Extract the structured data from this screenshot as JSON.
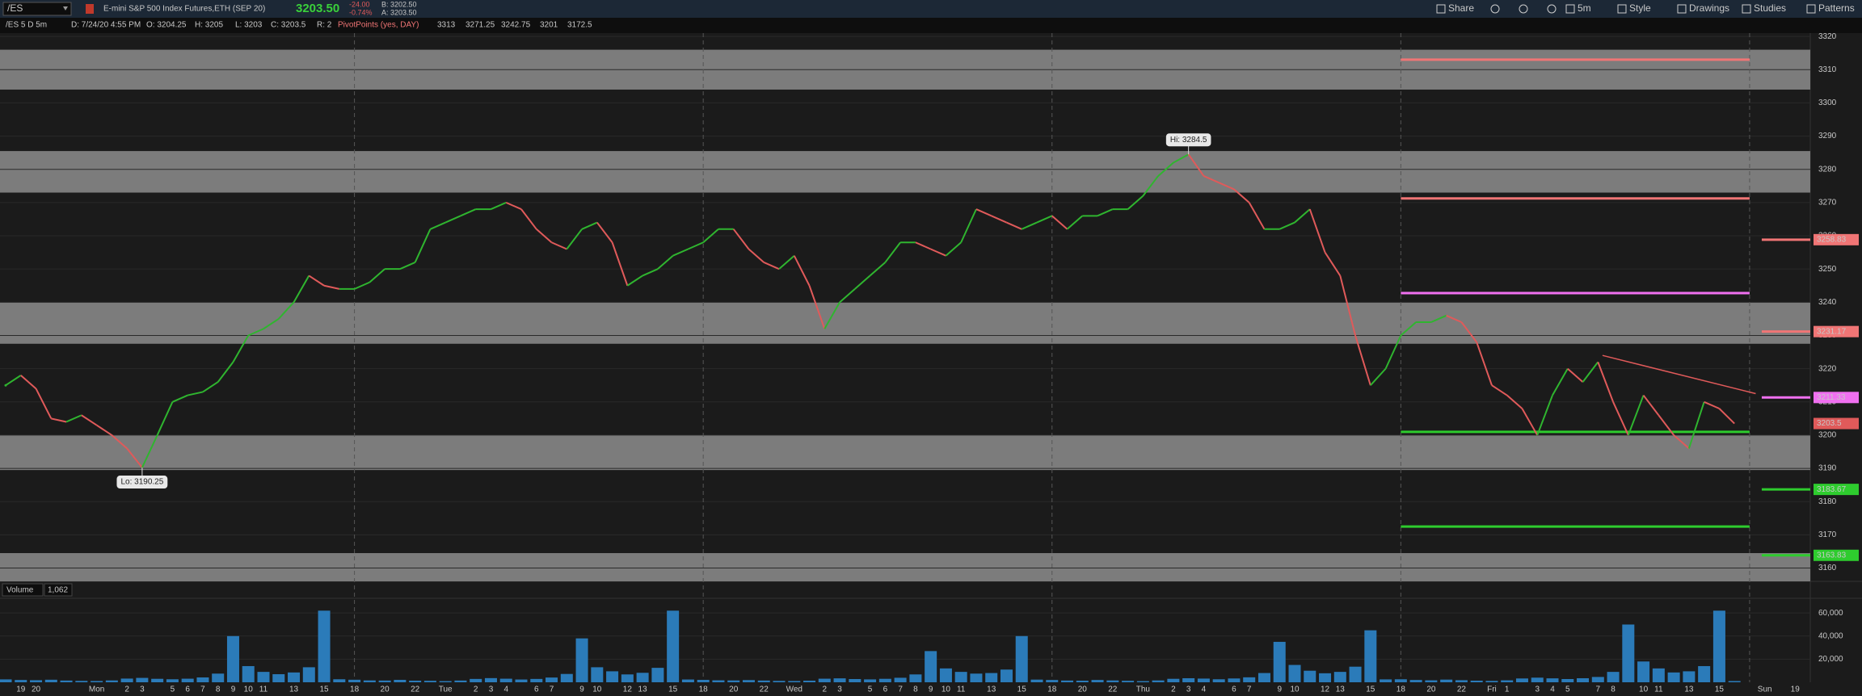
{
  "toolbar": {
    "description": "E-mini S&P 500 Index Futures,ETH (SEP 20)",
    "last": "3203.50",
    "change": "-24.00",
    "change_pct": "-0.74%",
    "bid": "B: 3202.50",
    "ask": "A: 3203.50",
    "buttons": [
      "Share",
      "5m",
      "Style",
      "Drawings",
      "Studies",
      "Patterns"
    ]
  },
  "info_bar": {
    "chart": "/ES 5 D 5m",
    "date": "D: 7/24/20 4:55 PM",
    "open": "O: 3204.25",
    "high": "H: 3205",
    "low": "L: 3203",
    "close": "C: 3203.5",
    "range": "R: 2",
    "study": "PivotPoints (yes, DAY)"
  },
  "chart_data": {
    "type": "line",
    "x": [
      0,
      1,
      2,
      3,
      4,
      5,
      6,
      7,
      8,
      9,
      10,
      11,
      12,
      13,
      14,
      15,
      16,
      17,
      18,
      19,
      20,
      21,
      22,
      23,
      24,
      25,
      26,
      27,
      28,
      29,
      30,
      31,
      32,
      33,
      34,
      35,
      36,
      37,
      38,
      39,
      40,
      41,
      42,
      43,
      44,
      45,
      46,
      47,
      48,
      49,
      50,
      51,
      52,
      53,
      54,
      55,
      56,
      57,
      58,
      59,
      60,
      61,
      62,
      63,
      64,
      65,
      66,
      67,
      68,
      69,
      70,
      71,
      72,
      73,
      74,
      75,
      76,
      77,
      78,
      79,
      80,
      81,
      82,
      83,
      84,
      85,
      86,
      87,
      88,
      89,
      90,
      91,
      92,
      93,
      94,
      95,
      96,
      97,
      98,
      99,
      100,
      101,
      102,
      103,
      104,
      105,
      106,
      107,
      108,
      109,
      110,
      111,
      112,
      113,
      114
    ],
    "series": [
      {
        "name": "/ES",
        "up_color": "#2fb52f",
        "down_color": "#e05a5a",
        "values": [
          3215,
          3218,
          3214,
          3205,
          3204,
          3206,
          3203,
          3200,
          3196,
          3190.25,
          3200,
          3210,
          3212,
          3213,
          3216,
          3222,
          3230,
          3232,
          3235,
          3240,
          3248,
          3245,
          3244,
          3244,
          3246,
          3250,
          3250,
          3252,
          3262,
          3264,
          3266,
          3268,
          3268,
          3270,
          3268,
          3262,
          3258,
          3256,
          3262,
          3264,
          3258,
          3245,
          3248,
          3250,
          3254,
          3256,
          3258,
          3262,
          3262,
          3256,
          3252,
          3250,
          3254,
          3245,
          3232,
          3240,
          3244,
          3248,
          3252,
          3258,
          3258,
          3256,
          3254,
          3258,
          3268,
          3266,
          3264,
          3262,
          3264,
          3266,
          3262,
          3266,
          3266,
          3268,
          3268,
          3272,
          3278,
          3282,
          3284.5,
          3278,
          3276,
          3274,
          3270,
          3262,
          3262,
          3264,
          3268,
          3255,
          3248,
          3230,
          3215,
          3220,
          3230,
          3234,
          3234,
          3236,
          3234,
          3228,
          3215,
          3212,
          3208,
          3200,
          3212,
          3220,
          3216,
          3222,
          3210,
          3200,
          3212,
          3206,
          3200,
          3196,
          3210,
          3208,
          3203.5
        ]
      },
      {
        "name": "Volume",
        "type": "bar",
        "axis": "y2",
        "color": "#2b7bb9",
        "values": [
          2500,
          2000,
          1800,
          2200,
          1500,
          1200,
          1100,
          1600,
          3200,
          3800,
          3000,
          2600,
          3100,
          4200,
          7500,
          40000,
          14000,
          9000,
          7000,
          8500,
          13000,
          62000,
          2600,
          2200,
          1600,
          1500,
          2100,
          1400,
          1300,
          1000,
          1500,
          2900,
          3600,
          3100,
          2400,
          2900,
          4100,
          7200,
          38000,
          13000,
          9500,
          6800,
          8200,
          12500,
          62000,
          2400,
          2100,
          1700,
          1600,
          1900,
          1500,
          1200,
          1100,
          1400,
          3100,
          3400,
          2800,
          2500,
          3000,
          3900,
          6800,
          27000,
          12000,
          9000,
          7500,
          8000,
          11000,
          40000,
          2300,
          2000,
          1500,
          1400,
          2000,
          1600,
          1300,
          1000,
          1600,
          3000,
          3500,
          3200,
          2600,
          3300,
          4300,
          8000,
          35000,
          15000,
          10000,
          7800,
          9000,
          13500,
          45000,
          2500,
          2600,
          2000,
          1700,
          2300,
          1800,
          1400,
          1200,
          1700,
          3300,
          4000,
          3400,
          2800,
          3500,
          4600,
          9000,
          50000,
          18000,
          12000,
          8500,
          9500,
          14000,
          62000,
          1062
        ]
      }
    ],
    "volume_label": "1,062",
    "xlim": [
      0,
      119
    ],
    "xticks": [
      {
        "value": 1,
        "label": "19"
      },
      {
        "value": 2,
        "label": "20"
      },
      {
        "value": 6,
        "label": "Mon"
      },
      {
        "value": 8,
        "label": "2"
      },
      {
        "value": 9,
        "label": "3"
      },
      {
        "value": 11,
        "label": "5"
      },
      {
        "value": 12,
        "label": "6"
      },
      {
        "value": 13,
        "label": "7"
      },
      {
        "value": 14,
        "label": "8"
      },
      {
        "value": 15,
        "label": "9"
      },
      {
        "value": 16,
        "label": "10"
      },
      {
        "value": 17,
        "label": "11"
      },
      {
        "value": 19,
        "label": "13"
      },
      {
        "value": 21,
        "label": "15"
      },
      {
        "value": 23,
        "label": "18"
      },
      {
        "value": 25,
        "label": "20"
      },
      {
        "value": 27,
        "label": "22"
      },
      {
        "value": 29,
        "label": "Tue"
      },
      {
        "value": 31,
        "label": "2"
      },
      {
        "value": 32,
        "label": "3"
      },
      {
        "value": 33,
        "label": "4"
      },
      {
        "value": 35,
        "label": "6"
      },
      {
        "value": 36,
        "label": "7"
      },
      {
        "value": 38,
        "label": "9"
      },
      {
        "value": 39,
        "label": "10"
      },
      {
        "value": 41,
        "label": "12"
      },
      {
        "value": 42,
        "label": "13"
      },
      {
        "value": 44,
        "label": "15"
      },
      {
        "value": 46,
        "label": "18"
      },
      {
        "value": 48,
        "label": "20"
      },
      {
        "value": 50,
        "label": "22"
      },
      {
        "value": 52,
        "label": "Wed"
      },
      {
        "value": 54,
        "label": "2"
      },
      {
        "value": 55,
        "label": "3"
      },
      {
        "value": 57,
        "label": "5"
      },
      {
        "value": 58,
        "label": "6"
      },
      {
        "value": 59,
        "label": "7"
      },
      {
        "value": 60,
        "label": "8"
      },
      {
        "value": 61,
        "label": "9"
      },
      {
        "value": 62,
        "label": "10"
      },
      {
        "value": 63,
        "label": "11"
      },
      {
        "value": 65,
        "label": "13"
      },
      {
        "value": 67,
        "label": "15"
      },
      {
        "value": 69,
        "label": "18"
      },
      {
        "value": 71,
        "label": "20"
      },
      {
        "value": 73,
        "label": "22"
      },
      {
        "value": 75,
        "label": "Thu"
      },
      {
        "value": 77,
        "label": "2"
      },
      {
        "value": 78,
        "label": "3"
      },
      {
        "value": 79,
        "label": "4"
      },
      {
        "value": 81,
        "label": "6"
      },
      {
        "value": 82,
        "label": "7"
      },
      {
        "value": 84,
        "label": "9"
      },
      {
        "value": 85,
        "label": "10"
      },
      {
        "value": 87,
        "label": "12"
      },
      {
        "value": 88,
        "label": "13"
      },
      {
        "value": 90,
        "label": "15"
      },
      {
        "value": 92,
        "label": "18"
      },
      {
        "value": 94,
        "label": "20"
      },
      {
        "value": 96,
        "label": "22"
      },
      {
        "value": 98,
        "label": "Fri"
      },
      {
        "value": 99,
        "label": "1"
      },
      {
        "value": 101,
        "label": "3"
      },
      {
        "value": 102,
        "label": "4"
      },
      {
        "value": 103,
        "label": "5"
      },
      {
        "value": 105,
        "label": "7"
      },
      {
        "value": 106,
        "label": "8"
      },
      {
        "value": 108,
        "label": "10"
      },
      {
        "value": 109,
        "label": "11"
      },
      {
        "value": 111,
        "label": "13"
      },
      {
        "value": 113,
        "label": "15"
      },
      {
        "value": 116,
        "label": "Sun"
      },
      {
        "value": 118,
        "label": "19"
      }
    ],
    "ylim": [
      3156,
      3321
    ],
    "yticks": [
      3160,
      3170,
      3180,
      3190,
      3200,
      3210,
      3220,
      3230,
      3240,
      3250,
      3260,
      3270,
      3280,
      3290,
      3300,
      3310,
      3320
    ],
    "y2lim": [
      0,
      72000
    ],
    "y2ticks": [
      {
        "value": 20000,
        "label": "20,000"
      },
      {
        "value": 40000,
        "label": "40,000"
      },
      {
        "value": 60000,
        "label": "60,000"
      }
    ],
    "grid": true,
    "session_breaks": [
      23,
      46,
      69,
      92,
      115
    ],
    "zones": {
      "color": "#7c7c7c",
      "ranges": [
        [
          3304,
          3316
        ],
        [
          3273,
          3285.5
        ],
        [
          3227.5,
          3240
        ],
        [
          3189.5,
          3200
        ],
        [
          3156,
          3164.5
        ]
      ]
    },
    "pivots": {
      "x": [
        92,
        115
      ],
      "levels": [
        {
          "value": 3313,
          "color": "#f07575"
        },
        {
          "value": 3271.25,
          "color": "#f07575"
        },
        {
          "value": 3242.75,
          "color": "#f070f0"
        },
        {
          "value": 3201,
          "color": "#2ecc2e"
        },
        {
          "value": 3172.5,
          "color": "#2ecc2e"
        }
      ]
    },
    "next_pivots": {
      "x": [
        115.8,
        119
      ],
      "levels": [
        {
          "value": 3258.83,
          "color": "#f07575"
        },
        {
          "value": 3231.17,
          "color": "#f07575"
        },
        {
          "value": 3211.33,
          "color": "#f070f0"
        },
        {
          "value": 3183.67,
          "color": "#2ecc2e"
        },
        {
          "value": 3163.83,
          "color": "#2ecc2e"
        }
      ]
    },
    "trendline": {
      "color": "#e05a5a",
      "x": [
        105.3,
        115.4
      ],
      "values": [
        3224,
        3212.5
      ]
    },
    "annotations": [
      {
        "text": "Hi: 3284.5",
        "x": 78,
        "value": 3284.5
      },
      {
        "text": "Lo: 3190.25",
        "x": 9,
        "value": 3190.25
      }
    ]
  }
}
